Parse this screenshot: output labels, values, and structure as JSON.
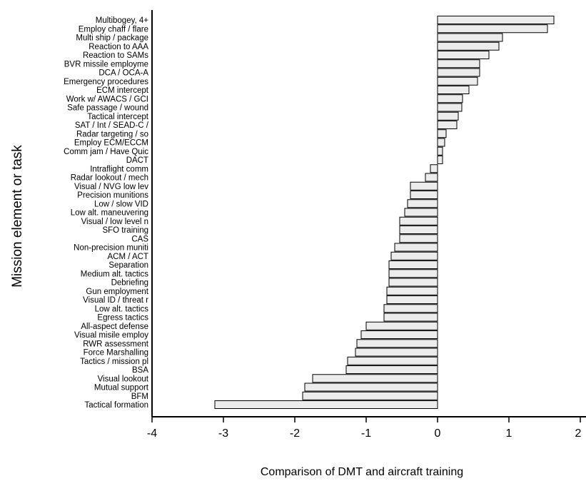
{
  "chart_data": {
    "type": "bar",
    "orientation": "horizontal",
    "xlabel": "Comparison of DMT and aircraft training",
    "ylabel": "Mission element or task",
    "xlim": [
      -4,
      2
    ],
    "xticks": [
      "-4",
      "-3",
      "-2",
      "-1",
      "0",
      "1",
      "2"
    ],
    "grid": false,
    "categories": [
      "Multibogey, 4+",
      "Employ chaff / flare",
      "Multi ship / package",
      "Reaction to AAA",
      "Reaction to SAMs",
      "BVR missile employme",
      "DCA / OCA-A",
      "Emergency procedures",
      "ECM intercept",
      "Work w/ AWACS / GCI",
      "Safe passage / wound",
      "Tactical intercept",
      "SAT / Int / SEAD-C /",
      "Radar targeting / so",
      "Employ ECM/ECCM",
      "Comm jam / Have Quic",
      "DACT",
      "Intraflight comm",
      "Radar lookout / mech",
      "Visual / NVG low lev",
      "Precision munitions",
      "Low / slow VID",
      "Low alt. maneuvering",
      "Visual / low level n",
      "SFO training",
      "CAS",
      "Non-precision muniti",
      "ACM / ACT",
      "Separation",
      "Medium alt. tactics",
      "Debriefing",
      "Gun employment",
      "Visual ID / threat r",
      "Low alt. tactics",
      "Egress tactics",
      "All-aspect defense",
      "Visual misile employ",
      "RWR assessment",
      "Force Marshalling",
      "Tactics / mission pl",
      "BSA",
      "Visual lookout",
      "Mutual support",
      "BFM",
      "Tactical formation"
    ],
    "values": [
      1.63,
      1.54,
      0.91,
      0.86,
      0.72,
      0.59,
      0.59,
      0.56,
      0.44,
      0.35,
      0.34,
      0.29,
      0.27,
      0.12,
      0.1,
      0.07,
      0.07,
      -0.1,
      -0.17,
      -0.38,
      -0.38,
      -0.42,
      -0.46,
      -0.53,
      -0.53,
      -0.53,
      -0.6,
      -0.65,
      -0.68,
      -0.68,
      -0.68,
      -0.71,
      -0.71,
      -0.75,
      -0.75,
      -1.0,
      -1.07,
      -1.13,
      -1.15,
      -1.26,
      -1.28,
      -1.75,
      -1.86,
      -1.89,
      -3.12
    ]
  }
}
